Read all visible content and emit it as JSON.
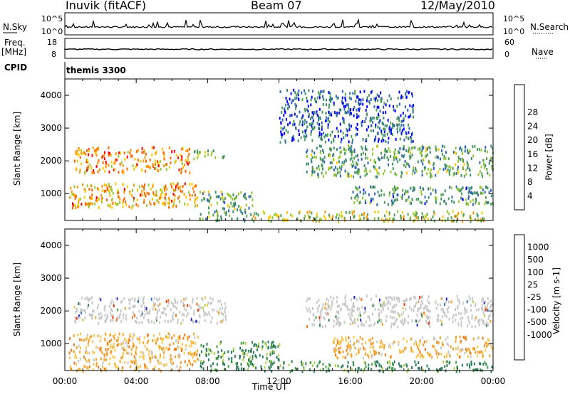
{
  "header": {
    "station": "Inuvik (fitACF)",
    "beam": "Beam 07",
    "date": "12/May/2010"
  },
  "left_labels": {
    "nsky": "N.Sky",
    "freq": "Freq.",
    "mhz": "[MHz]",
    "cpid": "CPID"
  },
  "right_labels": {
    "nsearch": "N.Search",
    "nave": "Nave"
  },
  "cpid_value": "themis 3300",
  "nsky_ticks": [
    "10^5",
    "10^0"
  ],
  "freq_ticks": [
    "18",
    "8"
  ],
  "nave_ticks": [
    "60",
    "0"
  ],
  "colors": {
    "power": [
      "#0000ff",
      "#2f64b4",
      "#3c8c6e",
      "#50a050",
      "#96c832",
      "#ffc800",
      "#ff9600",
      "#ff6400",
      "#ff0000"
    ],
    "velocity": [
      "#2020c8",
      "#286ec8",
      "#2d7d5a",
      "#46a046",
      "#b4d250",
      "#c8c8c8",
      "#fac850",
      "#f5a028",
      "#f07814",
      "#ff2d00"
    ]
  },
  "chart_data": [
    {
      "type": "heatmap",
      "name_panel": "power",
      "ylabel": "Slant Range [km]",
      "yticks": [
        1000,
        2000,
        3000,
        4000
      ],
      "ylim": [
        180,
        4500
      ],
      "xlim": [
        0,
        24
      ],
      "colorbar_label": "Power [dB]",
      "colorbar_ticks": [
        "4",
        "8",
        "12",
        "16",
        "20",
        "24",
        "28"
      ],
      "bands": [
        {
          "t0": 0.5,
          "t1": 7.0,
          "r0": 1650,
          "r1": 2450,
          "intensity": 0.78
        },
        {
          "t0": 7.2,
          "t1": 9.0,
          "r0": 2100,
          "r1": 2350,
          "intensity": 0.45
        },
        {
          "t0": 0.2,
          "t1": 7.5,
          "r0": 600,
          "r1": 1350,
          "intensity": 0.72
        },
        {
          "t0": 7.5,
          "t1": 10.5,
          "r0": 200,
          "r1": 1100,
          "intensity": 0.35
        },
        {
          "t0": 10.5,
          "t1": 24,
          "r0": 180,
          "r1": 500,
          "intensity": 0.55
        },
        {
          "t0": 13.5,
          "t1": 24,
          "r0": 1550,
          "r1": 2500,
          "intensity": 0.35
        },
        {
          "t0": 16.0,
          "t1": 24,
          "r0": 700,
          "r1": 1250,
          "intensity": 0.3
        },
        {
          "t0": 12.0,
          "t1": 19.5,
          "r0": 2600,
          "r1": 4200,
          "intensity": 0.15
        }
      ]
    },
    {
      "type": "heatmap",
      "name_panel": "velocity",
      "ylabel": "Slant Range [km]",
      "yticks": [
        1000,
        2000,
        3000,
        4000
      ],
      "ylim": [
        180,
        4500
      ],
      "xlim": [
        0,
        24
      ],
      "colorbar_label": "Velocity [m s-1]",
      "colorbar_ticks": [
        "1000",
        "500",
        "100",
        "25",
        "-25",
        "-100",
        "-500",
        "-1000"
      ],
      "bands": [
        {
          "t0": 0.5,
          "t1": 9.0,
          "r0": 1650,
          "r1": 2450,
          "class": "grey"
        },
        {
          "t0": 0.2,
          "t1": 7.5,
          "r0": 200,
          "r1": 1350,
          "class": "orange"
        },
        {
          "t0": 7.5,
          "t1": 12.0,
          "r0": 200,
          "r1": 1100,
          "class": "green"
        },
        {
          "t0": 12.0,
          "t1": 24,
          "r0": 180,
          "r1": 500,
          "class": "green"
        },
        {
          "t0": 13.5,
          "t1": 24,
          "r0": 1550,
          "r1": 2500,
          "class": "grey"
        },
        {
          "t0": 15.0,
          "t1": 24,
          "r0": 600,
          "r1": 1250,
          "class": "orange"
        }
      ]
    }
  ],
  "xaxis": {
    "label": "Time UT",
    "ticks": [
      "00:00",
      "04:00",
      "08:00",
      "12:00",
      "16:00",
      "20:00",
      "00:00"
    ]
  },
  "velocity_unit_sup": "-1"
}
